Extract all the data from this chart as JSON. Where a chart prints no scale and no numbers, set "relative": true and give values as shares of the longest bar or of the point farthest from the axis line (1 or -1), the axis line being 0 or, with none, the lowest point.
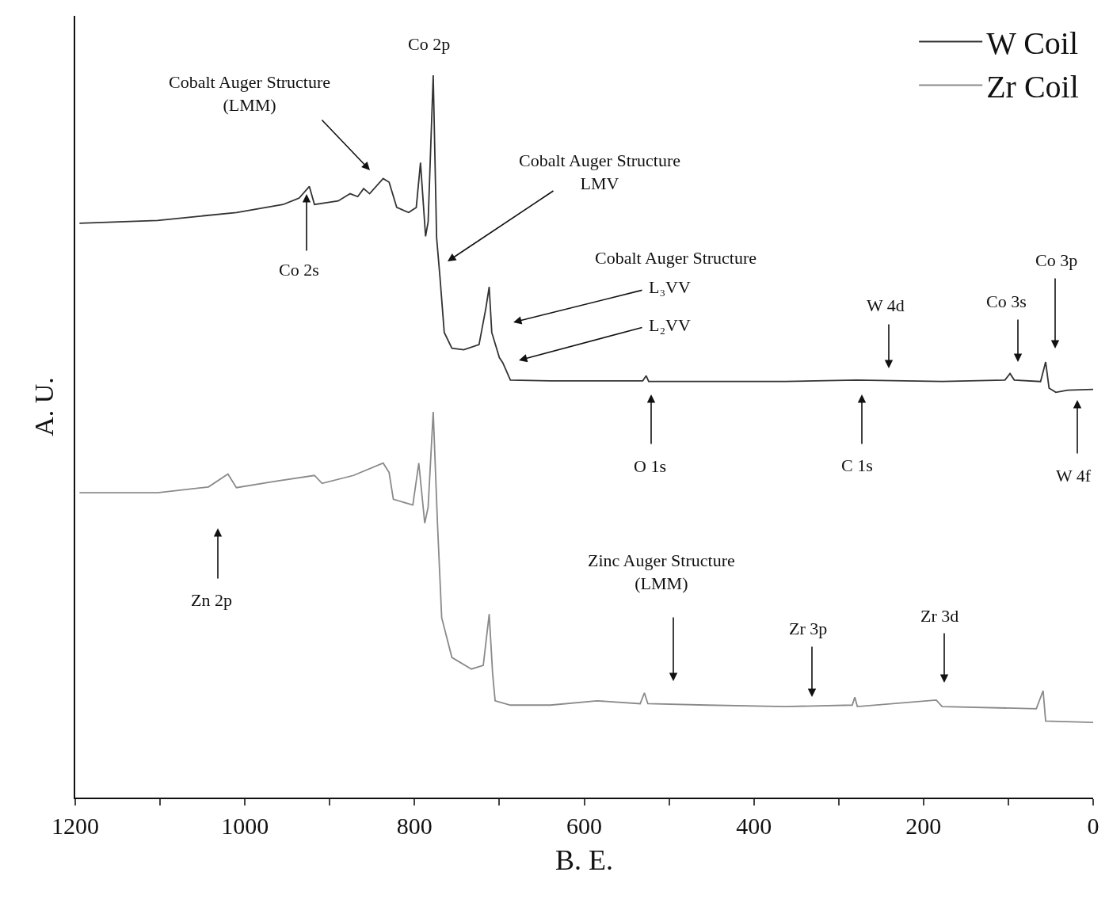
{
  "chart_data": {
    "type": "line",
    "relative": true,
    "xlabel": "B. E.",
    "ylabel": "A. U.",
    "xlim": [
      1200,
      0
    ],
    "xticks": [
      1200,
      {
        "value": 1100,
        "label": null
      },
      1000,
      {
        "value": 900,
        "label": null
      },
      800,
      {
        "value": 700,
        "label": null
      },
      600,
      {
        "value": 500,
        "label": null
      },
      400,
      {
        "value": 300,
        "label": null
      },
      200,
      {
        "value": 100,
        "label": null
      },
      0
    ],
    "legend": "top right",
    "series": [
      {
        "name": "W Coil",
        "color": "#333333",
        "x": [
          1195,
          1103,
          1010,
          955,
          936,
          924,
          918,
          890,
          876,
          867,
          860,
          853,
          837,
          830,
          821,
          807,
          798,
          793,
          787,
          784,
          778,
          774,
          770,
          765,
          756,
          742,
          724,
          716,
          712,
          709,
          700,
          696,
          687,
          640,
          531,
          527,
          524,
          363,
          279,
          178,
          104,
          98,
          93,
          62,
          56,
          52,
          44,
          30,
          0
        ],
        "values": [
          0.795,
          0.799,
          0.81,
          0.821,
          0.83,
          0.846,
          0.821,
          0.826,
          0.836,
          0.832,
          0.843,
          0.836,
          0.857,
          0.852,
          0.817,
          0.81,
          0.817,
          0.879,
          0.777,
          0.797,
          1,
          0.775,
          0.72,
          0.644,
          0.622,
          0.62,
          0.627,
          0.677,
          0.707,
          0.644,
          0.609,
          0.602,
          0.578,
          0.577,
          0.577,
          0.584,
          0.576,
          0.576,
          0.578,
          0.576,
          0.578,
          0.587,
          0.578,
          0.576,
          0.603,
          0.567,
          0.561,
          0.564,
          0.565
        ]
      },
      {
        "name": "Zr Coil",
        "color": "#8a8a8a",
        "x": [
          1195,
          1103,
          1043,
          1020,
          1010,
          964,
          918,
          909,
          872,
          837,
          830,
          825,
          802,
          795,
          788,
          784,
          778,
          773,
          768,
          756,
          733,
          719,
          712,
          708,
          705,
          687,
          640,
          585,
          534,
          529,
          525,
          455,
          363,
          284,
          281,
          278,
          185,
          178,
          67,
          59,
          56,
          0
        ],
        "values": [
          0.422,
          0.422,
          0.43,
          0.448,
          0.429,
          0.438,
          0.446,
          0.435,
          0.446,
          0.463,
          0.45,
          0.413,
          0.405,
          0.463,
          0.38,
          0.402,
          0.534,
          0.38,
          0.249,
          0.194,
          0.178,
          0.183,
          0.254,
          0.172,
          0.134,
          0.128,
          0.128,
          0.134,
          0.13,
          0.145,
          0.13,
          0.128,
          0.126,
          0.128,
          0.139,
          0.126,
          0.135,
          0.126,
          0.123,
          0.148,
          0.106,
          0.104
        ]
      }
    ],
    "annotations": [
      "Co 2p",
      "Cobalt Auger Structure\n(LMM)",
      "Cobalt Auger Structure\nLMV",
      "Cobalt Auger Structure",
      "L₃VV",
      "L₂VV",
      "Co 2s",
      "O 1s",
      "C 1s",
      "W 4d",
      "Co 3s",
      "Co 3p",
      "W 4f",
      "Zn 2p",
      "Zinc Auger Structure\n(LMM)",
      "Zr 3p",
      "Zr 3d"
    ]
  }
}
